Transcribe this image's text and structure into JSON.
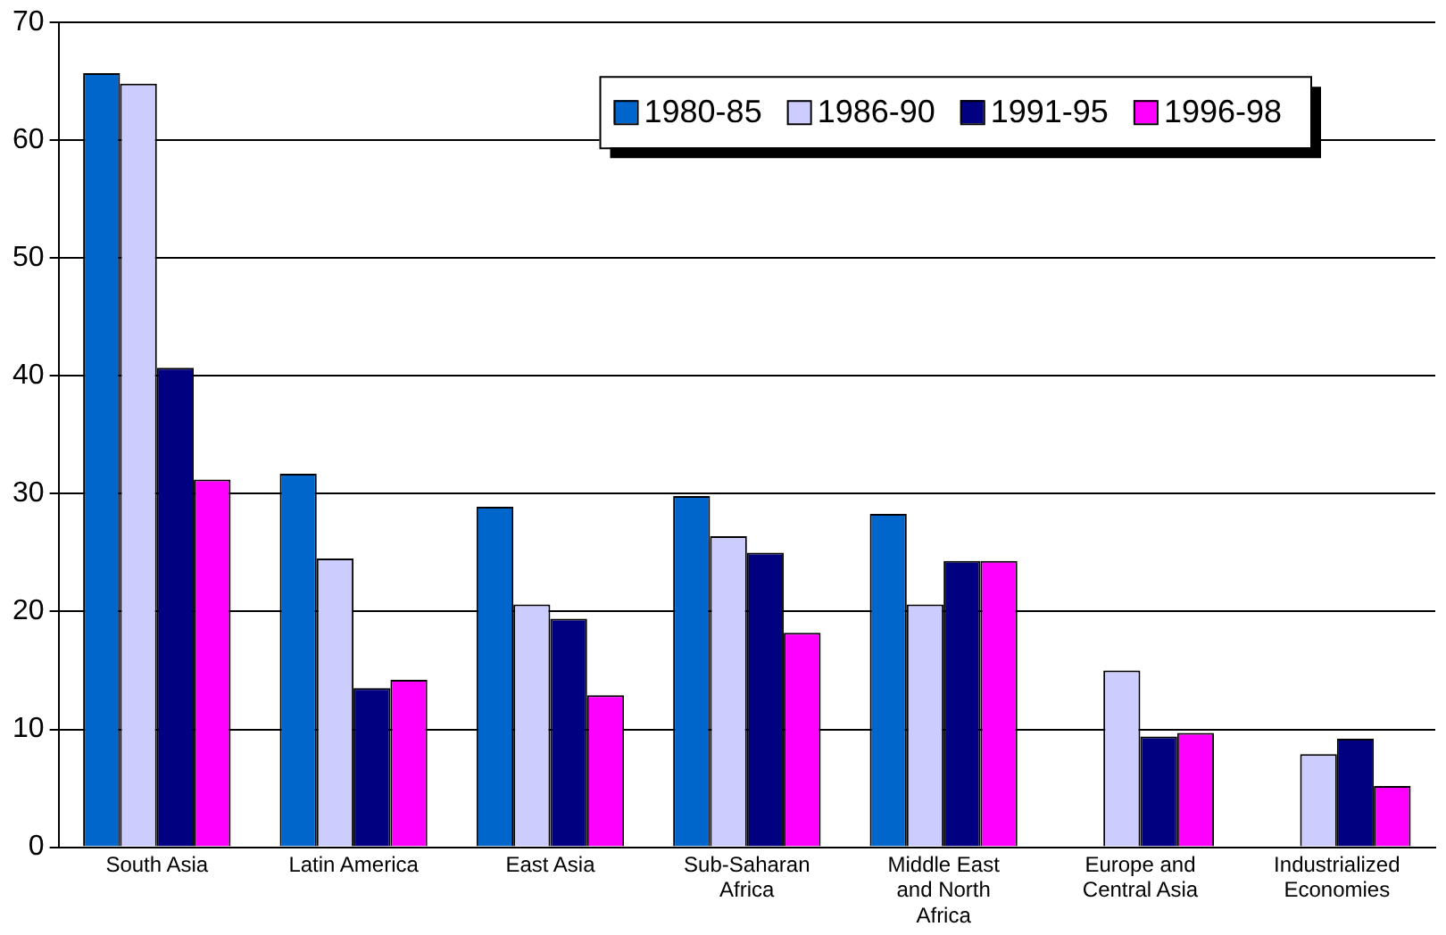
{
  "chart_data": {
    "type": "bar",
    "categories": [
      "South Asia",
      "Latin America",
      "East Asia",
      "Sub-Saharan Africa",
      "Middle East and North Africa",
      "Europe and Central Asia",
      "Industrialized Economies"
    ],
    "series": [
      {
        "name": "1980-85",
        "color": "#0066cc",
        "values": [
          65.7,
          31.7,
          28.9,
          29.8,
          28.3,
          null,
          null
        ]
      },
      {
        "name": "1986-90",
        "color": "#ccccff",
        "values": [
          64.8,
          24.5,
          20.6,
          26.4,
          20.6,
          15.0,
          7.9
        ]
      },
      {
        "name": "1991-95",
        "color": "#000080",
        "values": [
          40.7,
          13.5,
          19.4,
          25.0,
          24.3,
          9.4,
          9.2
        ]
      },
      {
        "name": "1996-98",
        "color": "#ff00ff",
        "values": [
          31.2,
          14.2,
          12.9,
          18.2,
          24.3,
          9.7,
          5.2
        ]
      }
    ],
    "ylim": [
      0,
      70
    ],
    "yticks": [
      0,
      10,
      20,
      30,
      40,
      50,
      60,
      70
    ],
    "grid": "y",
    "legend": "top right"
  }
}
